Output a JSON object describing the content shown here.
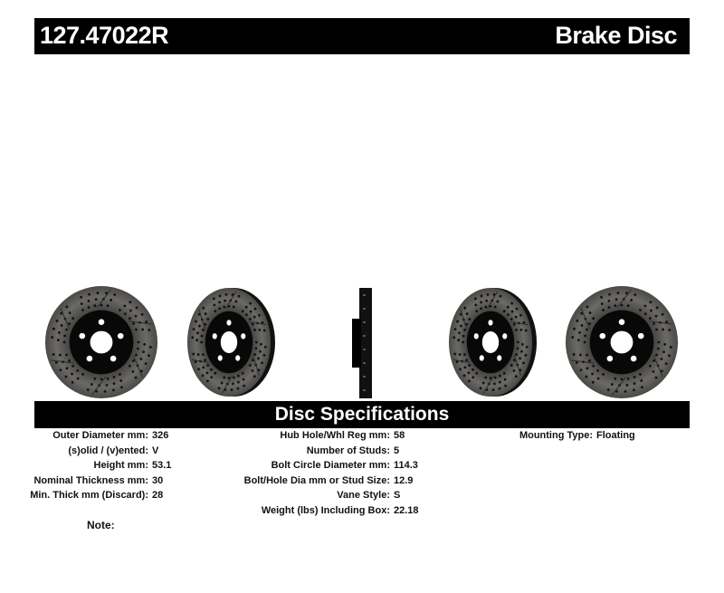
{
  "header": {
    "part_number": "127.47022R",
    "title": "Brake Disc"
  },
  "section_title": "Disc Specifications",
  "specs_left": [
    {
      "label": "Outer Diameter mm:",
      "value": "326"
    },
    {
      "label": "(s)olid / (v)ented:",
      "value": "V"
    },
    {
      "label": "Height mm:",
      "value": "53.1"
    },
    {
      "label": "Nominal Thickness mm:",
      "value": "30"
    },
    {
      "label": "Min. Thick mm (Discard):",
      "value": "28"
    }
  ],
  "specs_mid": [
    {
      "label": "Hub Hole/Whl Reg mm:",
      "value": "58"
    },
    {
      "label": "Number of Studs:",
      "value": "5"
    },
    {
      "label": "Bolt Circle Diameter mm:",
      "value": "114.3"
    },
    {
      "label": "Bolt/Hole Dia mm or Stud Size:",
      "value": "12.9"
    },
    {
      "label": "Vane Style:",
      "value": "S"
    },
    {
      "label": "Weight (lbs) Including Box:",
      "value": "22.18"
    }
  ],
  "specs_right": [
    {
      "label": "Mounting Type:",
      "value": "Floating"
    }
  ],
  "note_label": "Note:"
}
